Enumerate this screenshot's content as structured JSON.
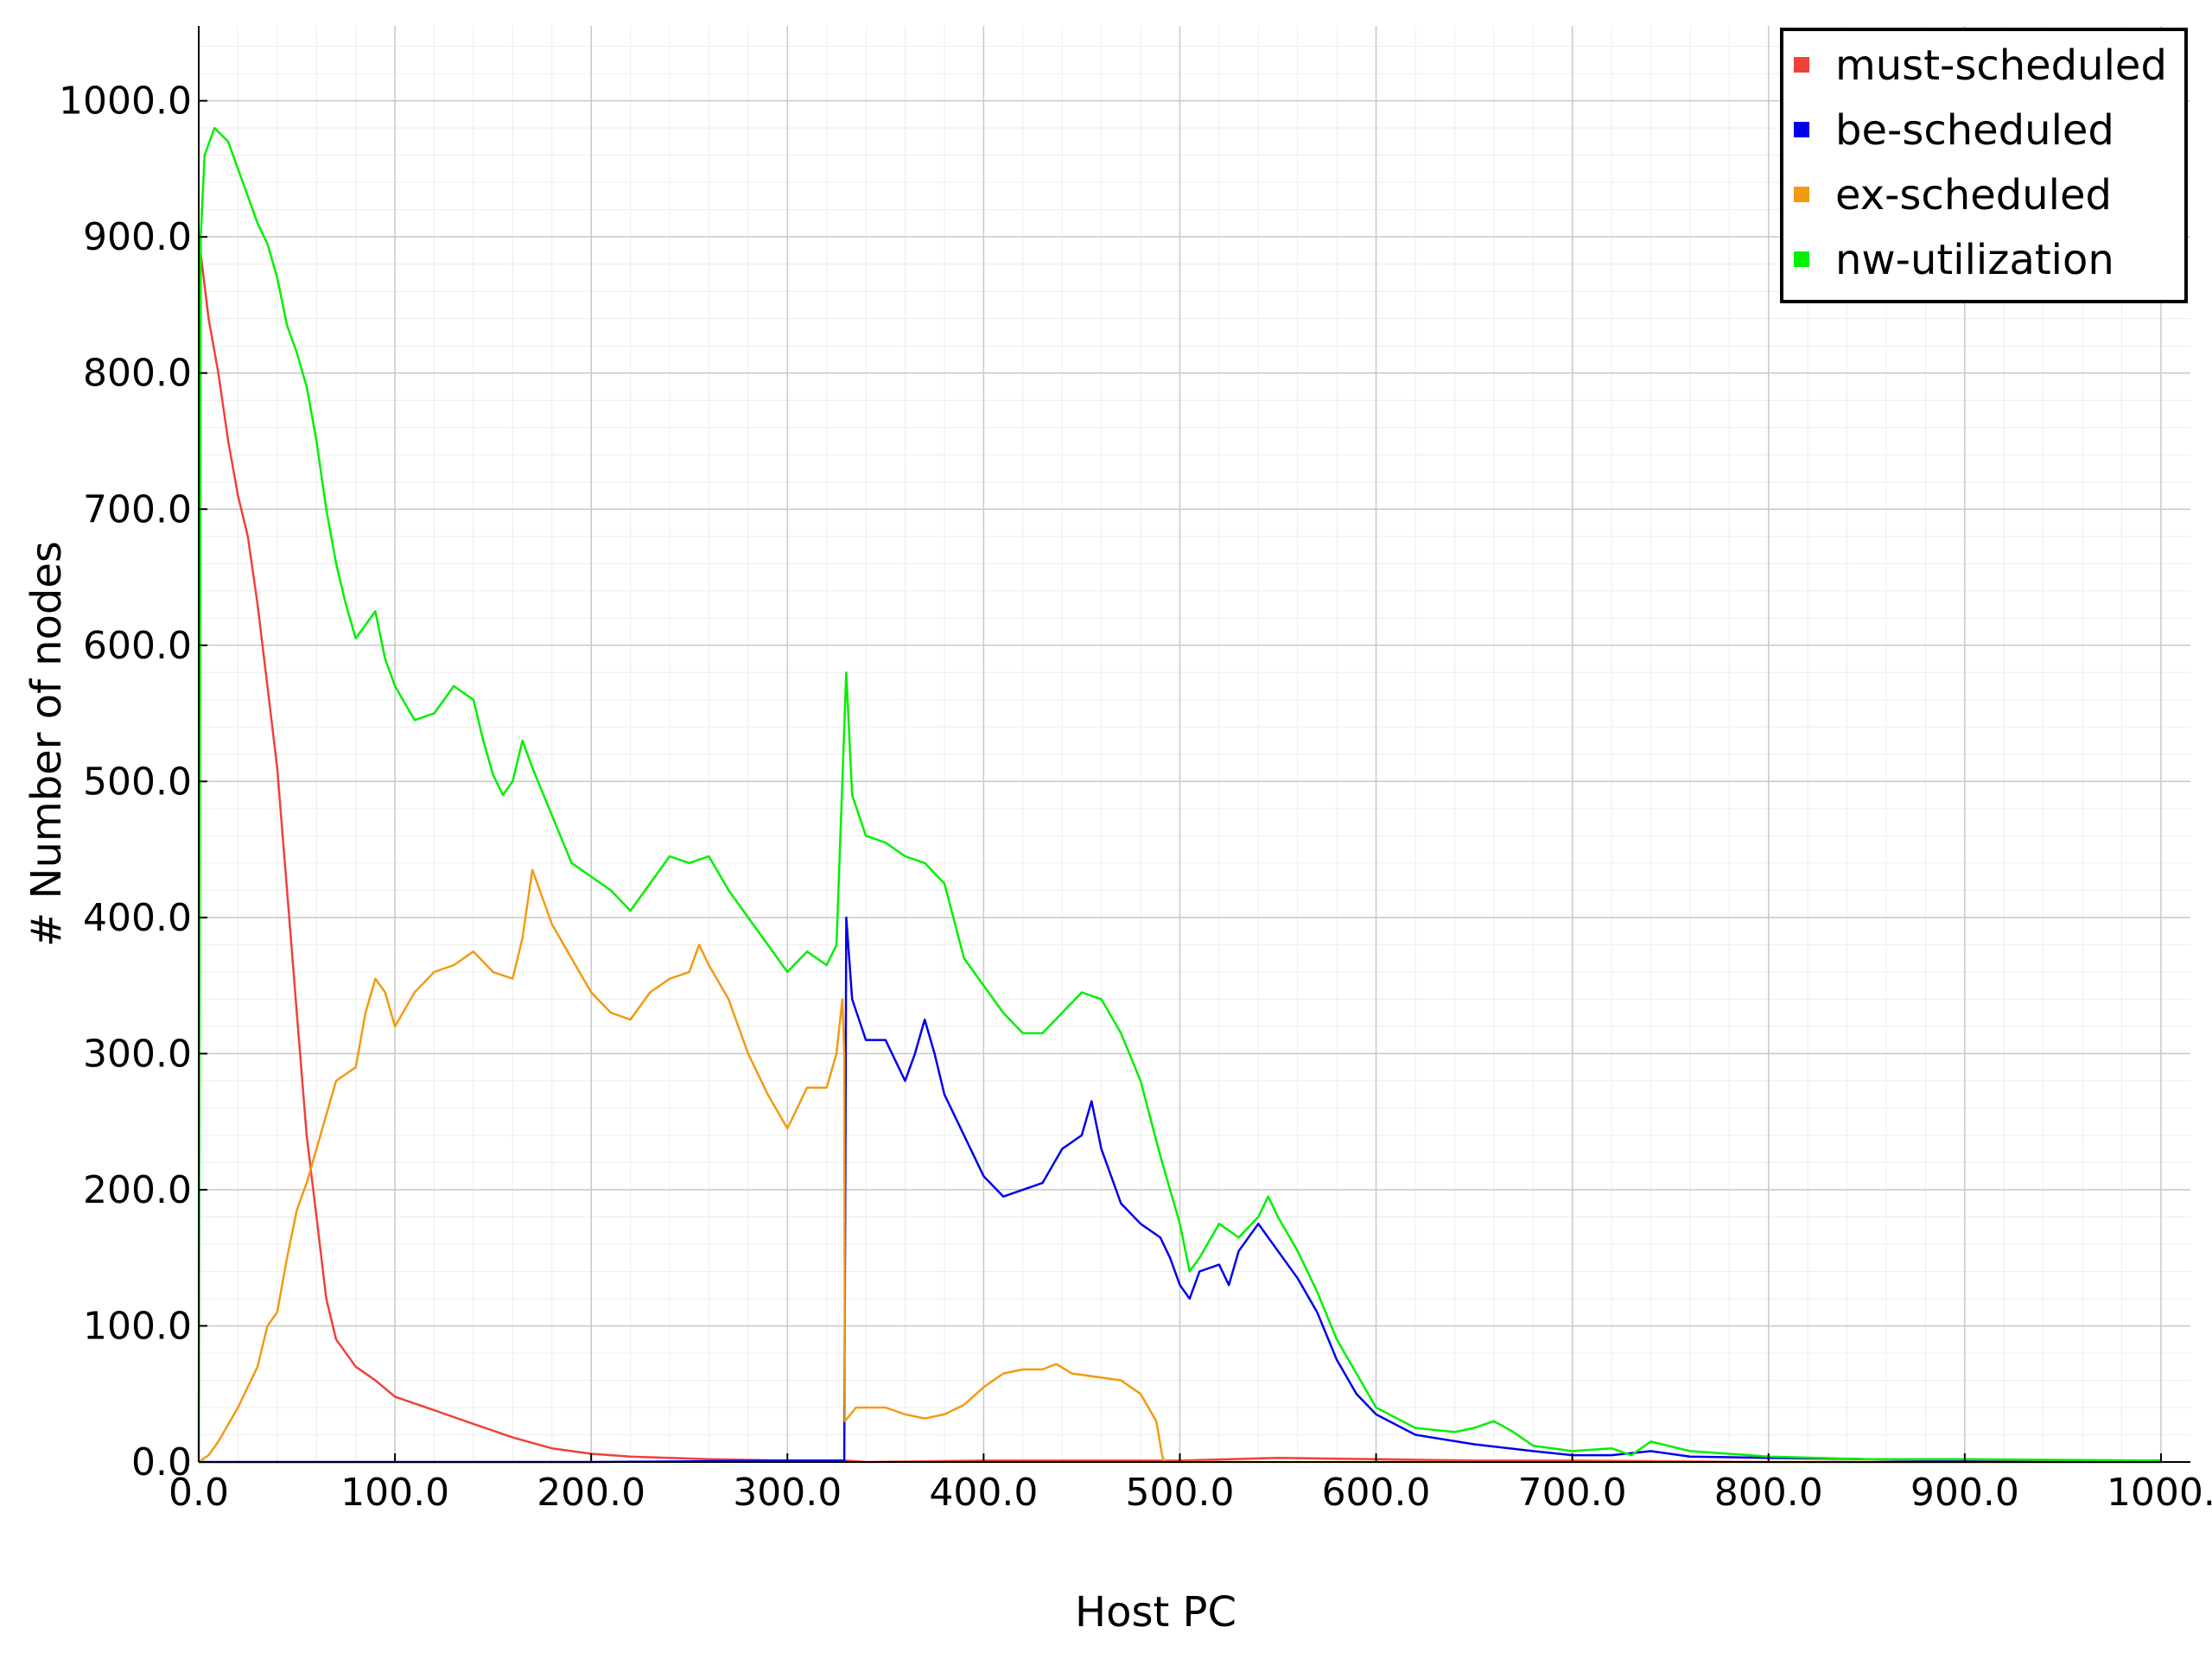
{
  "chart_data": {
    "type": "line",
    "title": "",
    "xlabel": "Host PC",
    "ylabel": "# Number of nodes",
    "xlim": [
      0,
      1015
    ],
    "ylim": [
      0,
      1055
    ],
    "grid": true,
    "legend_position": "top-right",
    "x_ticks": [
      "0.0",
      "100.0",
      "200.0",
      "300.0",
      "400.0",
      "500.0",
      "600.0",
      "700.0",
      "800.0",
      "900.0",
      "1000."
    ],
    "x_tick_values": [
      0,
      100,
      200,
      300,
      400,
      500,
      600,
      700,
      800,
      900,
      1000
    ],
    "y_ticks": [
      "0.0",
      "100.0",
      "200.0",
      "300.0",
      "400.0",
      "500.0",
      "600.0",
      "700.0",
      "800.0",
      "900.0",
      "1000.0"
    ],
    "y_tick_values": [
      0,
      100,
      200,
      300,
      400,
      500,
      600,
      700,
      800,
      900,
      1000
    ],
    "series": [
      {
        "name": "must-scheduled",
        "color": "#f0403a",
        "points": [
          [
            0,
            900
          ],
          [
            5,
            840
          ],
          [
            10,
            800
          ],
          [
            15,
            750
          ],
          [
            20,
            710
          ],
          [
            25,
            680
          ],
          [
            30,
            630
          ],
          [
            35,
            570
          ],
          [
            40,
            510
          ],
          [
            45,
            420
          ],
          [
            50,
            330
          ],
          [
            55,
            240
          ],
          [
            60,
            180
          ],
          [
            65,
            120
          ],
          [
            70,
            90
          ],
          [
            80,
            70
          ],
          [
            90,
            60
          ],
          [
            100,
            48
          ],
          [
            120,
            38
          ],
          [
            140,
            28
          ],
          [
            160,
            18
          ],
          [
            180,
            10
          ],
          [
            200,
            6
          ],
          [
            220,
            4
          ],
          [
            240,
            3
          ],
          [
            260,
            2
          ],
          [
            300,
            1
          ],
          [
            330,
            1
          ],
          [
            340,
            0
          ],
          [
            400,
            1
          ],
          [
            500,
            1
          ],
          [
            550,
            3
          ],
          [
            600,
            2
          ],
          [
            650,
            1
          ],
          [
            700,
            1
          ],
          [
            800,
            0
          ],
          [
            1000,
            0
          ]
        ]
      },
      {
        "name": "be-scheduled",
        "color": "#0000ee",
        "points": [
          [
            0,
            0
          ],
          [
            100,
            0
          ],
          [
            200,
            0
          ],
          [
            300,
            1
          ],
          [
            329,
            1
          ],
          [
            329.5,
            200
          ],
          [
            330,
            400
          ],
          [
            333,
            340
          ],
          [
            340,
            310
          ],
          [
            350,
            310
          ],
          [
            360,
            280
          ],
          [
            365,
            300
          ],
          [
            370,
            325
          ],
          [
            375,
            300
          ],
          [
            380,
            270
          ],
          [
            390,
            240
          ],
          [
            400,
            210
          ],
          [
            410,
            195
          ],
          [
            420,
            200
          ],
          [
            430,
            205
          ],
          [
            440,
            230
          ],
          [
            450,
            240
          ],
          [
            455,
            265
          ],
          [
            460,
            230
          ],
          [
            470,
            190
          ],
          [
            480,
            175
          ],
          [
            490,
            165
          ],
          [
            495,
            150
          ],
          [
            500,
            130
          ],
          [
            505,
            120
          ],
          [
            510,
            140
          ],
          [
            520,
            145
          ],
          [
            525,
            130
          ],
          [
            530,
            155
          ],
          [
            540,
            175
          ],
          [
            545,
            165
          ],
          [
            550,
            155
          ],
          [
            560,
            135
          ],
          [
            570,
            110
          ],
          [
            580,
            75
          ],
          [
            590,
            50
          ],
          [
            600,
            35
          ],
          [
            620,
            20
          ],
          [
            650,
            13
          ],
          [
            680,
            8
          ],
          [
            700,
            5
          ],
          [
            720,
            5
          ],
          [
            740,
            8
          ],
          [
            760,
            4
          ],
          [
            800,
            3
          ],
          [
            850,
            2
          ],
          [
            900,
            1
          ],
          [
            1000,
            1
          ]
        ]
      },
      {
        "name": "ex-scheduled",
        "color": "#f39a12",
        "points": [
          [
            0,
            0
          ],
          [
            5,
            5
          ],
          [
            10,
            15
          ],
          [
            20,
            40
          ],
          [
            30,
            70
          ],
          [
            35,
            100
          ],
          [
            40,
            110
          ],
          [
            45,
            150
          ],
          [
            50,
            185
          ],
          [
            55,
            205
          ],
          [
            60,
            230
          ],
          [
            65,
            255
          ],
          [
            70,
            280
          ],
          [
            80,
            290
          ],
          [
            85,
            330
          ],
          [
            90,
            355
          ],
          [
            95,
            345
          ],
          [
            100,
            320
          ],
          [
            110,
            345
          ],
          [
            120,
            360
          ],
          [
            130,
            365
          ],
          [
            140,
            375
          ],
          [
            150,
            360
          ],
          [
            160,
            355
          ],
          [
            165,
            385
          ],
          [
            170,
            435
          ],
          [
            180,
            395
          ],
          [
            190,
            370
          ],
          [
            200,
            345
          ],
          [
            210,
            330
          ],
          [
            220,
            325
          ],
          [
            230,
            345
          ],
          [
            240,
            355
          ],
          [
            250,
            360
          ],
          [
            255,
            380
          ],
          [
            260,
            365
          ],
          [
            270,
            340
          ],
          [
            275,
            320
          ],
          [
            280,
            300
          ],
          [
            290,
            270
          ],
          [
            300,
            245
          ],
          [
            310,
            275
          ],
          [
            320,
            275
          ],
          [
            325,
            300
          ],
          [
            328,
            340
          ],
          [
            329,
            300
          ],
          [
            329.3,
            30
          ],
          [
            335,
            40
          ],
          [
            350,
            40
          ],
          [
            360,
            35
          ],
          [
            370,
            32
          ],
          [
            380,
            35
          ],
          [
            390,
            42
          ],
          [
            400,
            55
          ],
          [
            410,
            65
          ],
          [
            420,
            68
          ],
          [
            430,
            68
          ],
          [
            437,
            72
          ],
          [
            445,
            65
          ],
          [
            460,
            62
          ],
          [
            470,
            60
          ],
          [
            480,
            50
          ],
          [
            488,
            30
          ],
          [
            491,
            5
          ],
          [
            492,
            0
          ],
          [
            600,
            0
          ],
          [
            700,
            0
          ],
          [
            800,
            0
          ],
          [
            1000,
            0
          ]
        ]
      },
      {
        "name": "nw-utilization",
        "color": "#00f000",
        "points": [
          [
            0,
            0
          ],
          [
            1,
            900
          ],
          [
            3,
            960
          ],
          [
            8,
            980
          ],
          [
            15,
            970
          ],
          [
            20,
            950
          ],
          [
            25,
            930
          ],
          [
            30,
            910
          ],
          [
            35,
            895
          ],
          [
            40,
            870
          ],
          [
            45,
            835
          ],
          [
            50,
            815
          ],
          [
            55,
            790
          ],
          [
            60,
            750
          ],
          [
            65,
            700
          ],
          [
            70,
            660
          ],
          [
            75,
            630
          ],
          [
            80,
            605
          ],
          [
            85,
            615
          ],
          [
            90,
            625
          ],
          [
            95,
            590
          ],
          [
            100,
            570
          ],
          [
            110,
            545
          ],
          [
            120,
            550
          ],
          [
            130,
            570
          ],
          [
            140,
            560
          ],
          [
            145,
            530
          ],
          [
            150,
            505
          ],
          [
            155,
            490
          ],
          [
            160,
            500
          ],
          [
            165,
            530
          ],
          [
            170,
            510
          ],
          [
            180,
            475
          ],
          [
            190,
            440
          ],
          [
            200,
            430
          ],
          [
            210,
            420
          ],
          [
            220,
            405
          ],
          [
            230,
            425
          ],
          [
            240,
            445
          ],
          [
            250,
            440
          ],
          [
            260,
            445
          ],
          [
            270,
            420
          ],
          [
            280,
            400
          ],
          [
            290,
            380
          ],
          [
            300,
            360
          ],
          [
            310,
            375
          ],
          [
            320,
            365
          ],
          [
            325,
            380
          ],
          [
            330,
            580
          ],
          [
            333,
            490
          ],
          [
            340,
            460
          ],
          [
            350,
            455
          ],
          [
            360,
            445
          ],
          [
            370,
            440
          ],
          [
            380,
            425
          ],
          [
            390,
            370
          ],
          [
            400,
            350
          ],
          [
            410,
            330
          ],
          [
            420,
            315
          ],
          [
            430,
            315
          ],
          [
            440,
            330
          ],
          [
            450,
            345
          ],
          [
            460,
            340
          ],
          [
            470,
            315
          ],
          [
            480,
            280
          ],
          [
            490,
            225
          ],
          [
            500,
            175
          ],
          [
            505,
            140
          ],
          [
            510,
            150
          ],
          [
            520,
            175
          ],
          [
            530,
            165
          ],
          [
            540,
            180
          ],
          [
            545,
            195
          ],
          [
            550,
            180
          ],
          [
            560,
            155
          ],
          [
            570,
            125
          ],
          [
            580,
            90
          ],
          [
            590,
            65
          ],
          [
            600,
            40
          ],
          [
            620,
            25
          ],
          [
            640,
            22
          ],
          [
            650,
            25
          ],
          [
            660,
            30
          ],
          [
            670,
            22
          ],
          [
            680,
            12
          ],
          [
            700,
            8
          ],
          [
            720,
            10
          ],
          [
            730,
            5
          ],
          [
            740,
            15
          ],
          [
            760,
            8
          ],
          [
            800,
            4
          ],
          [
            850,
            2
          ],
          [
            900,
            2
          ],
          [
            1000,
            1
          ]
        ]
      }
    ]
  }
}
